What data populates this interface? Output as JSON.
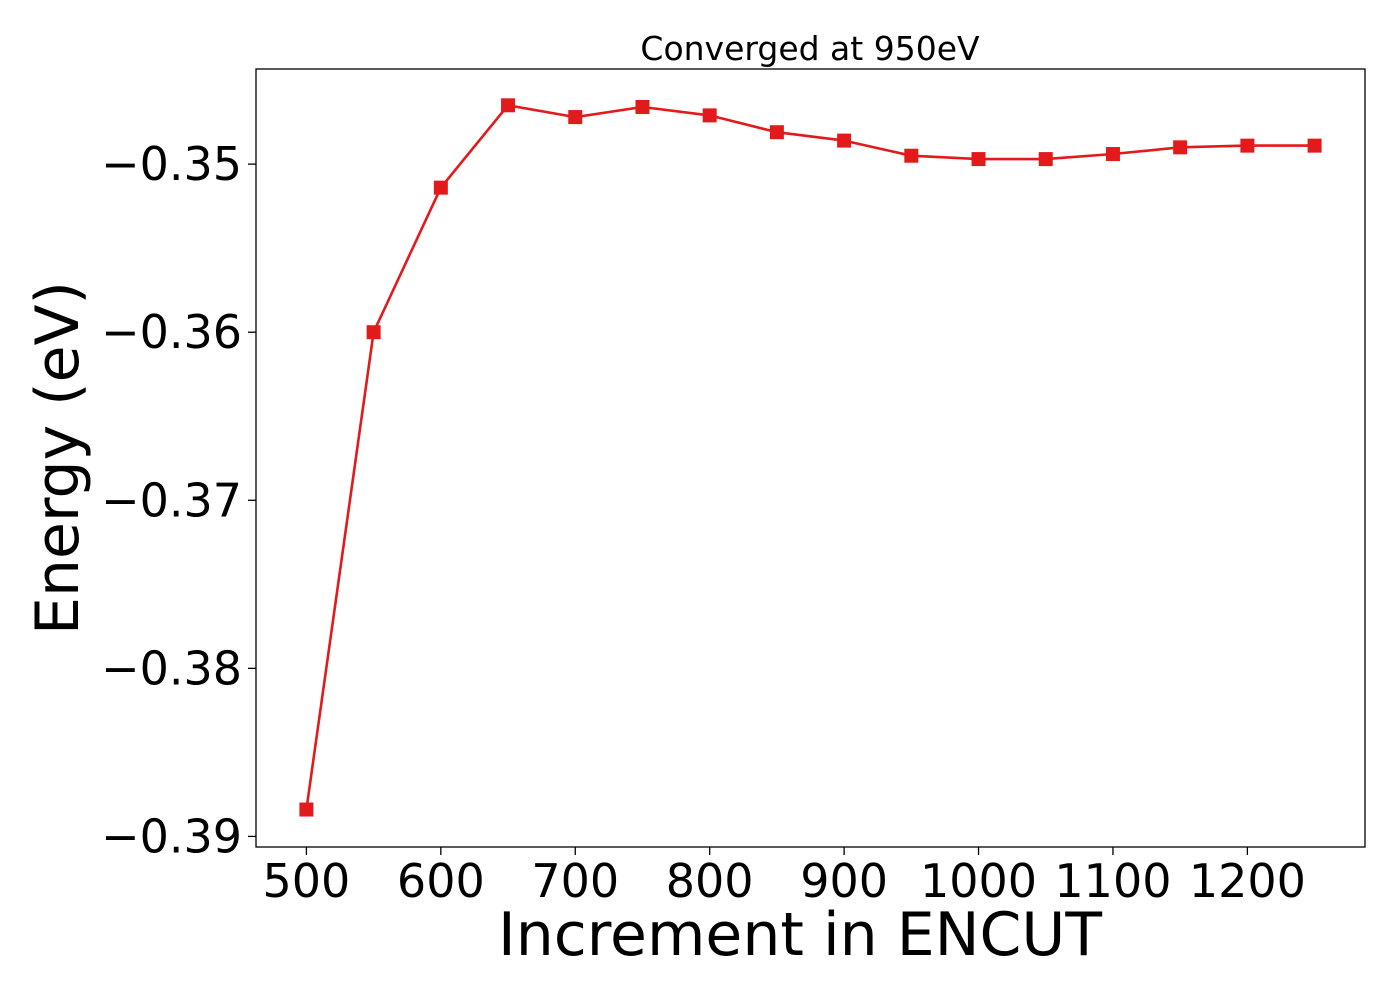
{
  "chart_data": {
    "type": "line",
    "title": "Converged at 950eV",
    "xlabel": "Increment in ENCUT",
    "ylabel": "Energy (eV)",
    "x": [
      500,
      550,
      600,
      650,
      700,
      750,
      800,
      850,
      900,
      950,
      1000,
      1050,
      1100,
      1150,
      1200,
      1250
    ],
    "series": [
      {
        "values": [
          -0.3884,
          -0.36,
          -0.3514,
          -0.3465,
          -0.3472,
          -0.3466,
          -0.3471,
          -0.3481,
          -0.3486,
          -0.3495,
          -0.3497,
          -0.3497,
          -0.3494,
          -0.349,
          -0.3489,
          -0.3489
        ],
        "color": "#e31a1c",
        "marker": "square"
      }
    ],
    "xticks": [
      500,
      600,
      700,
      800,
      900,
      1000,
      1100,
      1200
    ],
    "yticks": [
      -0.39,
      -0.38,
      -0.37,
      -0.36,
      -0.35
    ],
    "xtick_labels": [
      "500",
      "600",
      "700",
      "800",
      "900",
      "1000",
      "1100",
      "1200"
    ],
    "ytick_labels": [
      "−0.39",
      "−0.38",
      "−0.37",
      "−0.36",
      "−0.35"
    ],
    "xlim": [
      462.5,
      1287.5
    ],
    "ylim": [
      -0.39063,
      -0.34434
    ],
    "grid": false,
    "legend": "none"
  }
}
